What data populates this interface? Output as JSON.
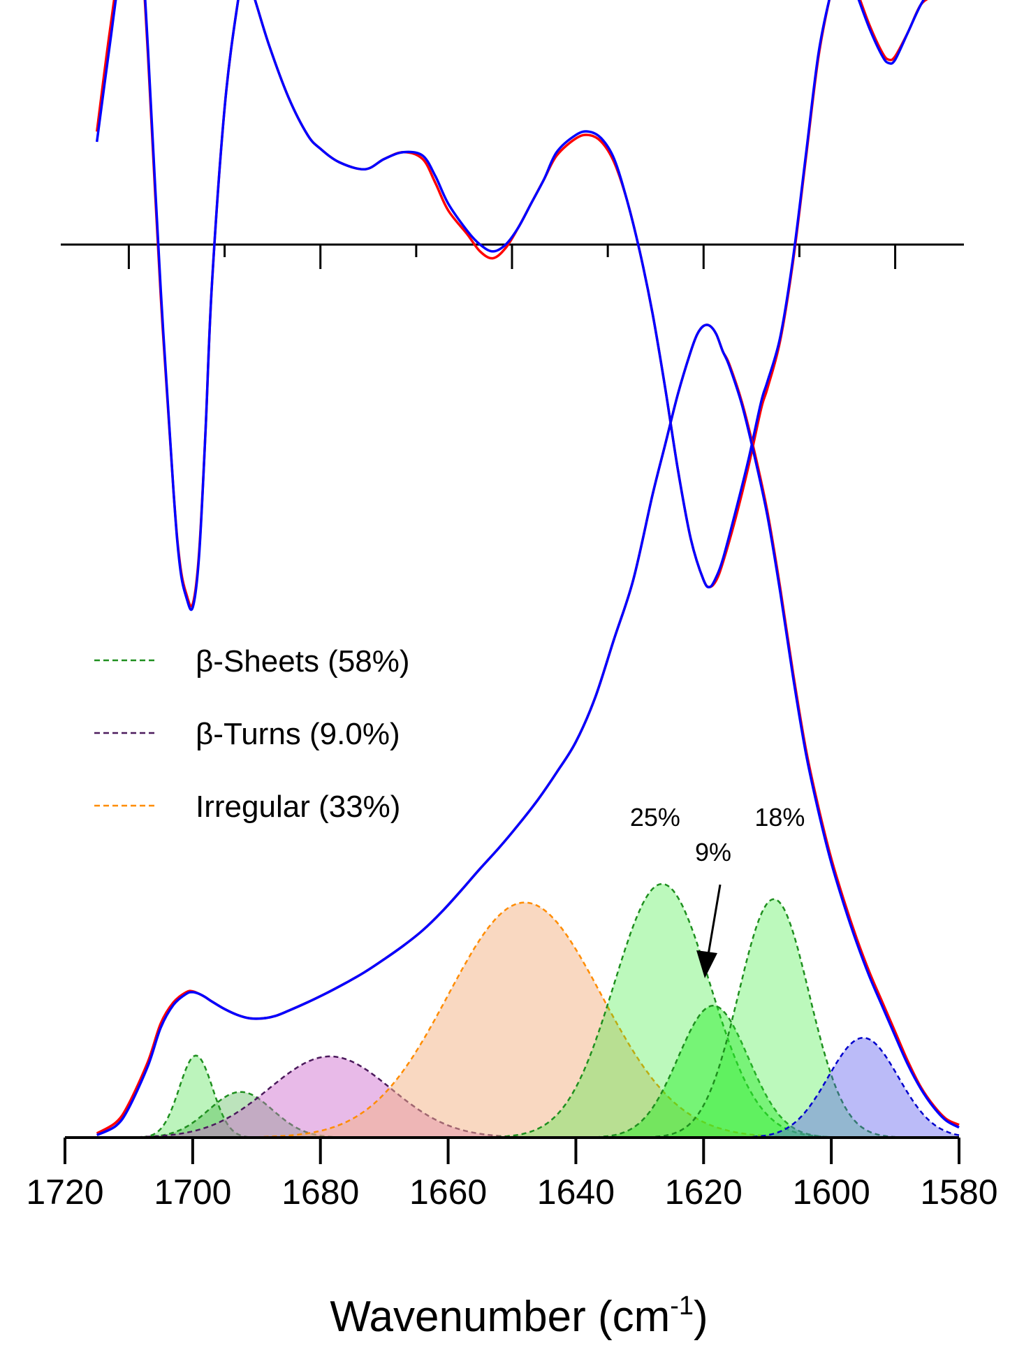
{
  "chart_data": [
    {
      "type": "line",
      "panel": "second-derivative",
      "x_range": [
        1720,
        1580
      ],
      "x_ticks": [
        1710,
        1695,
        1680,
        1665,
        1650,
        1635,
        1620,
        1605,
        1590
      ],
      "series": [
        {
          "color": "#ff0000",
          "x": [
            1715,
            1713,
            1711,
            1709,
            1708,
            1707,
            1705,
            1703,
            1702,
            1701,
            1700,
            1699,
            1698,
            1697,
            1695,
            1693,
            1692,
            1691,
            1690,
            1688,
            1685,
            1682,
            1680,
            1677,
            1673,
            1670,
            1667,
            1664,
            1662,
            1660,
            1657,
            1655,
            1653,
            1651,
            1649,
            1647,
            1645,
            1643,
            1640,
            1638,
            1636,
            1634,
            1632,
            1630,
            1628,
            1626,
            1624,
            1622,
            1620,
            1619,
            1618,
            1617,
            1615,
            1613,
            1611,
            1610,
            1608,
            1606,
            1604,
            1602,
            1600,
            1599,
            1598,
            1597,
            1596,
            1594,
            1592,
            1591,
            1590,
            1588,
            1586,
            1584,
            1583,
            1582
          ],
          "y": [
            0.33,
            0.62,
            0.86,
            0.91,
            0.84,
            0.55,
            -0.15,
            -0.72,
            -0.93,
            -1.02,
            -1.05,
            -0.9,
            -0.55,
            -0.12,
            0.4,
            0.7,
            0.78,
            0.76,
            0.7,
            0.58,
            0.43,
            0.32,
            0.28,
            0.24,
            0.22,
            0.25,
            0.27,
            0.25,
            0.18,
            0.1,
            0.03,
            -0.02,
            -0.04,
            -0.01,
            0.05,
            0.12,
            0.19,
            0.26,
            0.31,
            0.32,
            0.3,
            0.24,
            0.13,
            -0.02,
            -0.2,
            -0.42,
            -0.66,
            -0.86,
            -0.98,
            -1.0,
            -0.98,
            -0.93,
            -0.8,
            -0.65,
            -0.48,
            -0.42,
            -0.28,
            -0.05,
            0.25,
            0.55,
            0.74,
            0.79,
            0.8,
            0.78,
            0.74,
            0.64,
            0.56,
            0.54,
            0.55,
            0.62,
            0.7,
            0.73,
            0.77,
            0.8
          ]
        },
        {
          "color": "#0000ff",
          "x": [
            1715,
            1713,
            1711,
            1709,
            1708,
            1707,
            1705,
            1703,
            1702,
            1701,
            1700,
            1699,
            1698,
            1697,
            1695,
            1693,
            1692,
            1691,
            1690,
            1688,
            1685,
            1682,
            1680,
            1677,
            1673,
            1670,
            1667,
            1664,
            1662,
            1660,
            1657,
            1655,
            1653,
            1651,
            1649,
            1647,
            1645,
            1643,
            1640,
            1638,
            1636,
            1634,
            1632,
            1630,
            1628,
            1626,
            1624,
            1622,
            1620,
            1619,
            1618,
            1617,
            1615,
            1613,
            1611,
            1610,
            1608,
            1606,
            1604,
            1602,
            1600,
            1599,
            1598,
            1597,
            1596,
            1594,
            1592,
            1591,
            1590,
            1588,
            1586,
            1584,
            1583,
            1582
          ],
          "y": [
            0.3,
            0.58,
            0.84,
            0.93,
            0.86,
            0.57,
            -0.13,
            -0.72,
            -0.94,
            -1.03,
            -1.06,
            -0.91,
            -0.55,
            -0.12,
            0.4,
            0.7,
            0.78,
            0.76,
            0.7,
            0.58,
            0.43,
            0.32,
            0.28,
            0.24,
            0.22,
            0.25,
            0.27,
            0.26,
            0.2,
            0.12,
            0.04,
            0.0,
            -0.02,
            0.0,
            0.05,
            0.12,
            0.19,
            0.27,
            0.32,
            0.33,
            0.31,
            0.25,
            0.13,
            -0.02,
            -0.2,
            -0.42,
            -0.66,
            -0.86,
            -0.98,
            -1.0,
            -0.97,
            -0.92,
            -0.78,
            -0.63,
            -0.46,
            -0.4,
            -0.27,
            -0.04,
            0.26,
            0.56,
            0.74,
            0.79,
            0.8,
            0.78,
            0.73,
            0.63,
            0.55,
            0.53,
            0.54,
            0.62,
            0.7,
            0.76,
            0.8,
            0.79
          ]
        }
      ]
    },
    {
      "type": "area",
      "panel": "absorbance-fit",
      "title": "",
      "xlabel": "Wavenumber (cm",
      "xlabel_sup": "-1",
      "xlabel_close": ")",
      "ylabel": "",
      "x_range": [
        1720,
        1580
      ],
      "x_ticks": [
        1720,
        1700,
        1680,
        1660,
        1640,
        1620,
        1600,
        1580
      ],
      "x_tick_labels": [
        "1720",
        "1700",
        "1680",
        "1660",
        "1640",
        "1620",
        "1600",
        "1580"
      ],
      "y_range": [
        0,
        1.0
      ],
      "envelope": [
        {
          "color": "#ff0000",
          "x": [
            1715,
            1712,
            1710,
            1707,
            1705,
            1703,
            1701,
            1700,
            1699,
            1698,
            1697,
            1695,
            1693,
            1691,
            1689,
            1687,
            1685,
            1682,
            1679,
            1676,
            1673,
            1670,
            1667,
            1664,
            1661,
            1658,
            1655,
            1652,
            1649,
            1646,
            1643,
            1640,
            1637,
            1634,
            1631,
            1628,
            1626,
            1624,
            1622,
            1621,
            1620,
            1619,
            1618,
            1617,
            1616,
            1614,
            1612,
            1610,
            1608,
            1606,
            1604,
            1602,
            1600,
            1598,
            1596,
            1594,
            1592,
            1590,
            1588,
            1586,
            1584,
            1582,
            1580
          ],
          "y": [
            0.005,
            0.018,
            0.04,
            0.09,
            0.135,
            0.16,
            0.172,
            0.173,
            0.17,
            0.166,
            0.161,
            0.152,
            0.145,
            0.141,
            0.141,
            0.144,
            0.15,
            0.16,
            0.171,
            0.183,
            0.196,
            0.211,
            0.227,
            0.245,
            0.267,
            0.292,
            0.318,
            0.343,
            0.37,
            0.399,
            0.432,
            0.468,
            0.52,
            0.59,
            0.66,
            0.76,
            0.82,
            0.88,
            0.93,
            0.95,
            0.96,
            0.96,
            0.95,
            0.93,
            0.915,
            0.87,
            0.81,
            0.74,
            0.65,
            0.55,
            0.46,
            0.39,
            0.33,
            0.28,
            0.235,
            0.195,
            0.16,
            0.125,
            0.09,
            0.06,
            0.038,
            0.022,
            0.015
          ]
        },
        {
          "color": "#0000ff",
          "x": [
            1715,
            1712,
            1710,
            1707,
            1705,
            1703,
            1701,
            1700,
            1699,
            1698,
            1697,
            1695,
            1693,
            1691,
            1689,
            1687,
            1685,
            1682,
            1679,
            1676,
            1673,
            1670,
            1667,
            1664,
            1661,
            1658,
            1655,
            1652,
            1649,
            1646,
            1643,
            1640,
            1637,
            1634,
            1631,
            1628,
            1626,
            1624,
            1622,
            1621,
            1620,
            1619,
            1618,
            1617,
            1616,
            1614,
            1612,
            1610,
            1608,
            1606,
            1604,
            1602,
            1600,
            1598,
            1596,
            1594,
            1592,
            1590,
            1588,
            1586,
            1584,
            1582,
            1580
          ],
          "y": [
            0.003,
            0.014,
            0.035,
            0.085,
            0.13,
            0.157,
            0.17,
            0.172,
            0.17,
            0.166,
            0.161,
            0.152,
            0.145,
            0.141,
            0.141,
            0.144,
            0.15,
            0.16,
            0.171,
            0.183,
            0.196,
            0.211,
            0.227,
            0.245,
            0.267,
            0.292,
            0.318,
            0.343,
            0.37,
            0.399,
            0.432,
            0.468,
            0.52,
            0.59,
            0.66,
            0.76,
            0.82,
            0.88,
            0.93,
            0.95,
            0.96,
            0.96,
            0.95,
            0.93,
            0.913,
            0.867,
            0.805,
            0.735,
            0.645,
            0.545,
            0.455,
            0.385,
            0.325,
            0.275,
            0.23,
            0.19,
            0.155,
            0.12,
            0.086,
            0.058,
            0.036,
            0.02,
            0.012
          ]
        }
      ],
      "components": [
        {
          "name": "β-Sheets",
          "center": 1699.5,
          "height": 0.097,
          "width": 2.6,
          "line": "#1f8f1f",
          "fill": "#33dd33",
          "alpha": 0.33
        },
        {
          "name": "β-Sheets",
          "center": 1692.5,
          "height": 0.054,
          "width": 5.0,
          "line": "#1f8f1f",
          "fill": "#33aa33",
          "alpha": 0.33
        },
        {
          "name": "β-Turns",
          "center": 1678.5,
          "height": 0.096,
          "width": 9.5,
          "line": "#4b1a5c",
          "fill": "#cc66cc",
          "alpha": 0.45
        },
        {
          "name": "Irregular",
          "center": 1648.0,
          "height": 0.278,
          "width": 12.0,
          "line": "#ff8c00",
          "fill": "#f4b183",
          "alpha": 0.5
        },
        {
          "name": "β-Sheets",
          "center": 1626.5,
          "height": 0.3,
          "width": 7.5,
          "line": "#1f8f1f",
          "fill": "#33ee33",
          "alpha": 0.33
        },
        {
          "name": "β-Sheets",
          "center": 1618.5,
          "height": 0.156,
          "width": 5.5,
          "line": "#1f8f1f",
          "fill": "#22ee22",
          "alpha": 0.45
        },
        {
          "name": "β-Sheets",
          "center": 1609.0,
          "height": 0.282,
          "width": 5.5,
          "line": "#1f8f1f",
          "fill": "#33ee33",
          "alpha": 0.33
        },
        {
          "name": "",
          "center": 1595.0,
          "height": 0.118,
          "width": 5.5,
          "line": "#0000cc",
          "fill": "#5555ee",
          "alpha": 0.4
        }
      ],
      "legend": {
        "placement": "top-left",
        "entries": [
          {
            "label": "β-Sheets (58%)",
            "color": "#1f8f1f"
          },
          {
            "label": "β-Turns (9.0%)",
            "color": "#4b1a5c"
          },
          {
            "label": "Irregular (33%)",
            "color": "#ff8c00"
          }
        ]
      },
      "annotations": [
        {
          "text": "25%",
          "x": 1626.5
        },
        {
          "text": "18%",
          "x": 1608.5
        },
        {
          "text": "9%",
          "x": 1618.5,
          "arrow": true
        }
      ]
    }
  ]
}
